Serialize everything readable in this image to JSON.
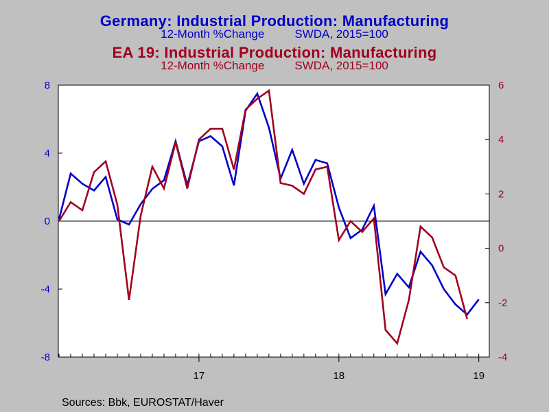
{
  "header": {
    "title1": "Germany: Industrial Production: Manufacturing",
    "subtitle1_left": "12-Month %Change",
    "subtitle1_right": "SWDA, 2015=100",
    "title2": "EA 19: Industrial Production: Manufacturing",
    "subtitle2_left": "12-Month %Change",
    "subtitle2_right": "SWDA, 2015=100"
  },
  "footer": {
    "sources": "Sources:  Bbk, EUROSTAT/Haver"
  },
  "colors": {
    "germany": "#0000c8",
    "ea19": "#a00020",
    "plot_bg": "#ffffff",
    "page_bg": "#c0c0c0"
  },
  "chart_data": {
    "type": "line",
    "x_tick_labels": [
      "17",
      "18",
      "19"
    ],
    "x_ticks_at": [
      "2017-01",
      "2018-01",
      "2019-01"
    ],
    "left_axis": {
      "ylim": [
        -8,
        8
      ],
      "ticks": [
        8,
        4,
        0,
        -4,
        -8
      ],
      "series": "Germany"
    },
    "right_axis": {
      "ylim": [
        -4,
        6
      ],
      "ticks": [
        6,
        4,
        2,
        0,
        -2,
        -4
      ],
      "series": "EA 19"
    },
    "grid": false,
    "zero_line_left": true,
    "x": [
      "2016-01",
      "2016-02",
      "2016-03",
      "2016-04",
      "2016-05",
      "2016-06",
      "2016-07",
      "2016-08",
      "2016-09",
      "2016-10",
      "2016-11",
      "2016-12",
      "2017-01",
      "2017-02",
      "2017-03",
      "2017-04",
      "2017-05",
      "2017-06",
      "2017-07",
      "2017-08",
      "2017-09",
      "2017-10",
      "2017-11",
      "2017-12",
      "2018-01",
      "2018-02",
      "2018-03",
      "2018-04",
      "2018-05",
      "2018-06",
      "2018-07",
      "2018-08",
      "2018-09",
      "2018-10",
      "2018-11",
      "2018-12",
      "2019-01"
    ],
    "series": [
      {
        "name": "Germany: Industrial Production: Manufacturing",
        "axis": "left",
        "color": "#0000c8",
        "values": [
          0.1,
          2.8,
          2.2,
          1.8,
          2.6,
          0.1,
          -0.2,
          1.0,
          1.9,
          2.4,
          4.7,
          2.1,
          4.7,
          5.0,
          4.4,
          2.1,
          6.5,
          7.5,
          5.5,
          2.5,
          4.2,
          2.2,
          3.6,
          3.4,
          0.8,
          -1.0,
          -0.5,
          0.9,
          -4.3,
          -3.1,
          -3.9,
          -1.8,
          -2.6,
          -4.0,
          -4.9,
          -5.5,
          -4.6
        ]
      },
      {
        "name": "EA 19: Industrial Production: Manufacturing",
        "axis": "right",
        "color": "#a00020",
        "values": [
          1.0,
          1.7,
          1.4,
          2.8,
          3.2,
          1.6,
          -1.9,
          1.2,
          3.0,
          2.2,
          3.9,
          2.2,
          4.0,
          4.4,
          4.4,
          2.9,
          5.1,
          5.5,
          5.8,
          2.4,
          2.3,
          2.0,
          2.9,
          3.0,
          0.3,
          1.0,
          0.6,
          1.1,
          -3.0,
          -3.5,
          -1.9,
          0.8,
          0.4,
          -0.7,
          -1.0,
          -2.6,
          null
        ]
      }
    ]
  }
}
